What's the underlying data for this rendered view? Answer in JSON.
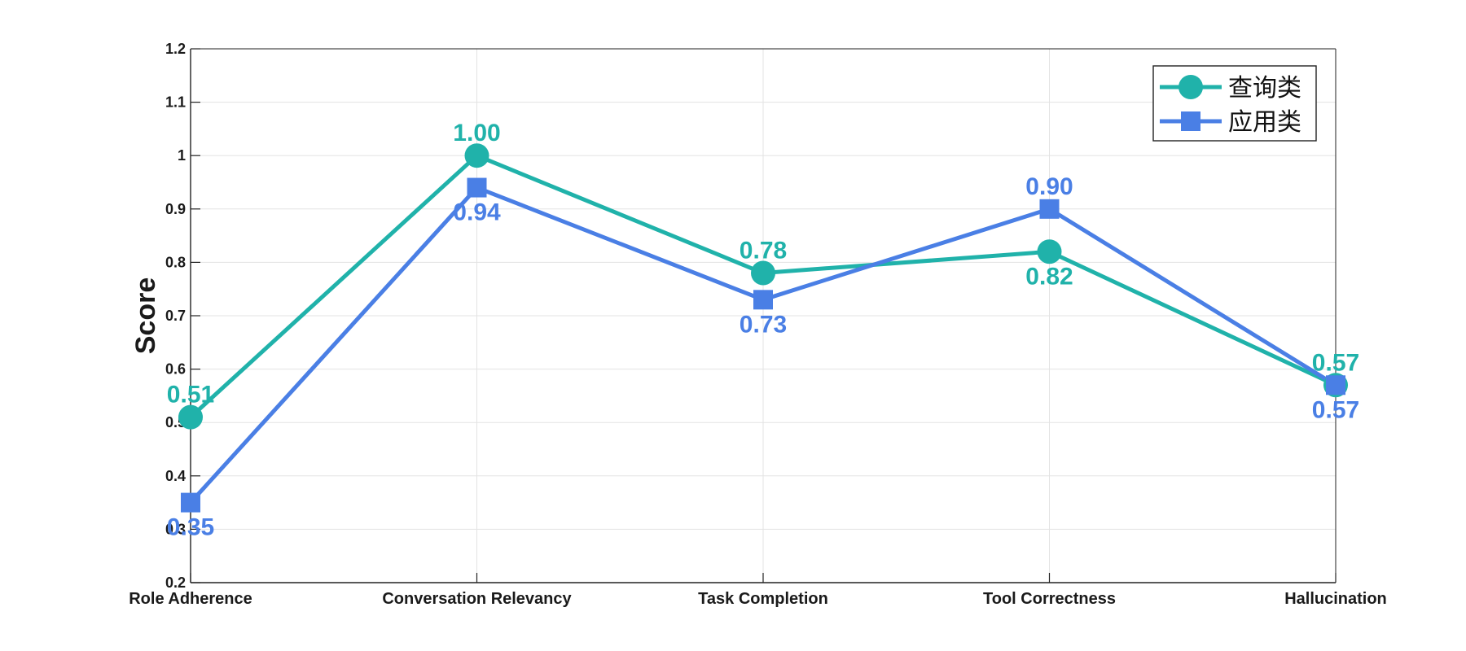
{
  "chart_data": {
    "type": "line",
    "categories": [
      "Role Adherence",
      "Conversation Relevancy",
      "Task Completion",
      "Tool Correctness",
      "Hallucination"
    ],
    "series": [
      {
        "name": "查询类",
        "values": [
          0.51,
          1.0,
          0.78,
          0.82,
          0.57
        ],
        "labels": [
          "0.51",
          "1.00",
          "0.78",
          "0.82",
          "0.57"
        ],
        "label_side": [
          "above",
          "above",
          "above",
          "below",
          "above"
        ],
        "color": "#20B2AA",
        "marker": "circle"
      },
      {
        "name": "应用类",
        "values": [
          0.35,
          0.94,
          0.73,
          0.9,
          0.57
        ],
        "labels": [
          "0.35",
          "0.94",
          "0.73",
          "0.90",
          "0.57"
        ],
        "label_side": [
          "below",
          "below",
          "below",
          "above",
          "below"
        ],
        "color": "#4A7FE5",
        "marker": "square"
      }
    ],
    "ylabel": "Score",
    "xlabel": "",
    "ylim": [
      0.2,
      1.2
    ],
    "yticks": [
      "0.2",
      "0.3",
      "0.4",
      "0.5",
      "0.6",
      "0.7",
      "0.8",
      "0.9",
      "1",
      "1.1",
      "1.2"
    ],
    "grid": true,
    "legend_position": "top-right"
  }
}
